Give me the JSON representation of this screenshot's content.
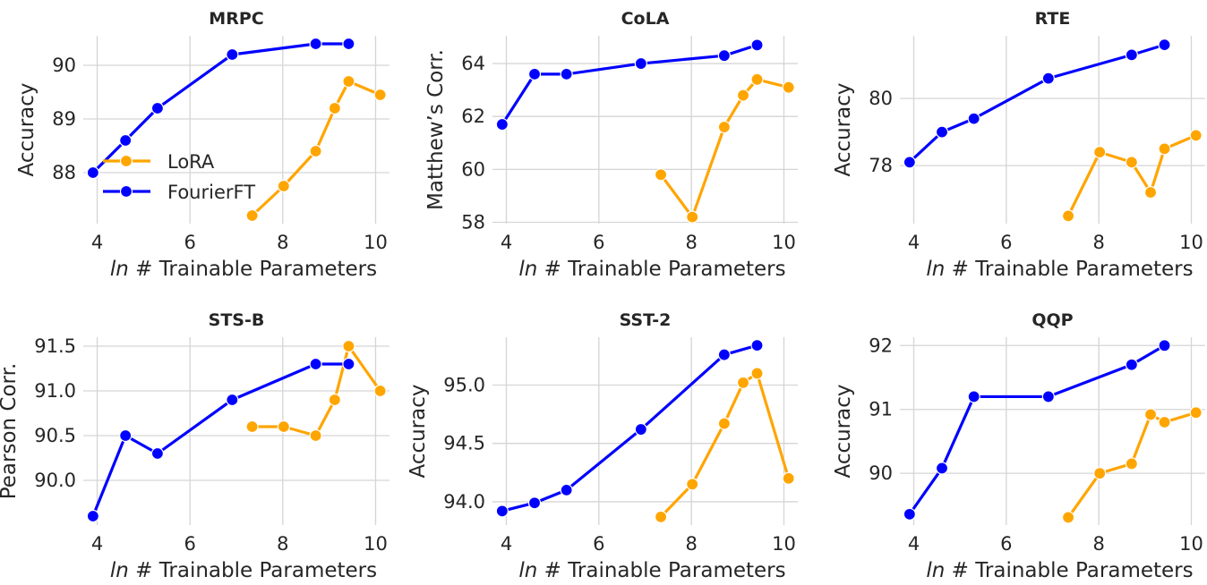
{
  "chart_data": [
    {
      "type": "line",
      "title": "MRPC",
      "xlabel_italic": "ln",
      "xlabel": "# Trainable Parameters",
      "ylabel": "Accuracy",
      "xlim": [
        3.7,
        10.3
      ],
      "ylim": [
        87.05,
        90.55
      ],
      "xticks": [
        4,
        6,
        8,
        10
      ],
      "yticks": [
        88,
        89,
        90
      ],
      "ytick_labels": [
        "88",
        "89",
        "90"
      ],
      "grid": true,
      "legend": "center-left",
      "series": [
        {
          "name": "LoRA",
          "color": "#FFA500",
          "x": [
            7.34,
            8.02,
            8.71,
            9.12,
            9.42,
            10.1
          ],
          "y": [
            87.2,
            87.75,
            88.4,
            89.2,
            89.7,
            89.45
          ]
        },
        {
          "name": "FourierFT",
          "color": "#0000FF",
          "x": [
            3.91,
            4.61,
            5.3,
            6.91,
            8.71,
            9.42
          ],
          "y": [
            88.0,
            88.6,
            89.2,
            90.2,
            90.4,
            90.4
          ]
        }
      ]
    },
    {
      "type": "line",
      "title": "CoLA",
      "xlabel_italic": "ln",
      "xlabel": "# Trainable Parameters",
      "ylabel": "Matthew’s Corr.",
      "xlim": [
        3.7,
        10.3
      ],
      "ylim": [
        57.95,
        65.05
      ],
      "xticks": [
        4,
        6,
        8,
        10
      ],
      "yticks": [
        58,
        60,
        62,
        64
      ],
      "ytick_labels": [
        "58",
        "60",
        "62",
        "64"
      ],
      "grid": true,
      "series": [
        {
          "name": "LoRA",
          "color": "#FFA500",
          "x": [
            7.34,
            8.02,
            8.71,
            9.12,
            9.42,
            10.1
          ],
          "y": [
            59.8,
            58.2,
            61.6,
            62.8,
            63.4,
            63.1
          ]
        },
        {
          "name": "FourierFT",
          "color": "#0000FF",
          "x": [
            3.91,
            4.61,
            5.3,
            6.91,
            8.71,
            9.42
          ],
          "y": [
            61.7,
            63.6,
            63.6,
            64.0,
            64.3,
            64.7
          ]
        }
      ]
    },
    {
      "type": "line",
      "title": "RTE",
      "xlabel_italic": "ln",
      "xlabel": "# Trainable Parameters",
      "ylabel": "Accuracy",
      "xlim": [
        3.7,
        10.3
      ],
      "ylim": [
        76.27,
        81.87
      ],
      "xticks": [
        4,
        6,
        8,
        10
      ],
      "yticks": [
        78,
        80
      ],
      "ytick_labels": [
        "78",
        "80"
      ],
      "grid": true,
      "series": [
        {
          "name": "LoRA",
          "color": "#FFA500",
          "x": [
            7.34,
            8.02,
            8.71,
            9.12,
            9.42,
            10.1
          ],
          "y": [
            76.5,
            78.4,
            78.1,
            77.2,
            78.5,
            78.9
          ]
        },
        {
          "name": "FourierFT",
          "color": "#0000FF",
          "x": [
            3.91,
            4.61,
            5.3,
            6.91,
            8.71,
            9.42
          ],
          "y": [
            78.1,
            79.0,
            79.4,
            80.6,
            81.3,
            81.6
          ]
        }
      ]
    },
    {
      "type": "line",
      "title": "STS-B",
      "xlabel_italic": "ln",
      "xlabel": "# Trainable Parameters",
      "ylabel": "Pearson Corr.",
      "xlim": [
        3.7,
        10.3
      ],
      "ylim": [
        89.5,
        91.6
      ],
      "xticks": [
        4,
        6,
        8,
        10
      ],
      "yticks": [
        90.0,
        90.5,
        91.0,
        91.5
      ],
      "ytick_labels": [
        "90.0",
        "90.5",
        "91.0",
        "91.5"
      ],
      "grid": true,
      "series": [
        {
          "name": "LoRA",
          "color": "#FFA500",
          "x": [
            7.34,
            8.02,
            8.71,
            9.12,
            9.42,
            10.1
          ],
          "y": [
            90.6,
            90.6,
            90.5,
            90.9,
            91.5,
            91.0
          ]
        },
        {
          "name": "FourierFT",
          "color": "#0000FF",
          "x": [
            3.91,
            4.61,
            5.3,
            6.91,
            8.71,
            9.42
          ],
          "y": [
            89.6,
            90.5,
            90.3,
            90.9,
            91.3,
            91.3
          ]
        }
      ]
    },
    {
      "type": "line",
      "title": "SST-2",
      "xlabel_italic": "ln",
      "xlabel": "# Trainable Parameters",
      "ylabel": "Accuracy",
      "xlim": [
        3.7,
        10.3
      ],
      "ylim": [
        93.8,
        95.41
      ],
      "xticks": [
        4,
        6,
        8,
        10
      ],
      "yticks": [
        94.0,
        94.5,
        95.0
      ],
      "ytick_labels": [
        "94.0",
        "94.5",
        "95.0"
      ],
      "grid": true,
      "series": [
        {
          "name": "LoRA",
          "color": "#FFA500",
          "x": [
            7.34,
            8.02,
            8.71,
            9.12,
            9.42,
            10.1
          ],
          "y": [
            93.87,
            94.15,
            94.67,
            95.02,
            95.1,
            94.2
          ]
        },
        {
          "name": "FourierFT",
          "color": "#0000FF",
          "x": [
            3.91,
            4.61,
            5.3,
            6.91,
            8.71,
            9.42
          ],
          "y": [
            93.92,
            93.99,
            94.1,
            94.62,
            95.26,
            95.34
          ]
        }
      ]
    },
    {
      "type": "line",
      "title": "QQP",
      "xlabel_italic": "ln",
      "xlabel": "# Trainable Parameters",
      "ylabel": "Accuracy",
      "xlim": [
        3.7,
        10.3
      ],
      "ylim": [
        89.19,
        92.13
      ],
      "xticks": [
        4,
        6,
        8,
        10
      ],
      "yticks": [
        90,
        91,
        92
      ],
      "ytick_labels": [
        "90",
        "91",
        "92"
      ],
      "grid": true,
      "series": [
        {
          "name": "LoRA",
          "color": "#FFA500",
          "x": [
            7.34,
            8.02,
            8.71,
            9.12,
            9.42,
            10.1
          ],
          "y": [
            89.31,
            90.0,
            90.15,
            90.92,
            90.8,
            90.95
          ]
        },
        {
          "name": "FourierFT",
          "color": "#0000FF",
          "x": [
            3.91,
            4.61,
            5.3,
            6.91,
            8.71,
            9.42
          ],
          "y": [
            89.36,
            90.08,
            91.2,
            91.2,
            91.7,
            92.0
          ]
        }
      ]
    }
  ]
}
